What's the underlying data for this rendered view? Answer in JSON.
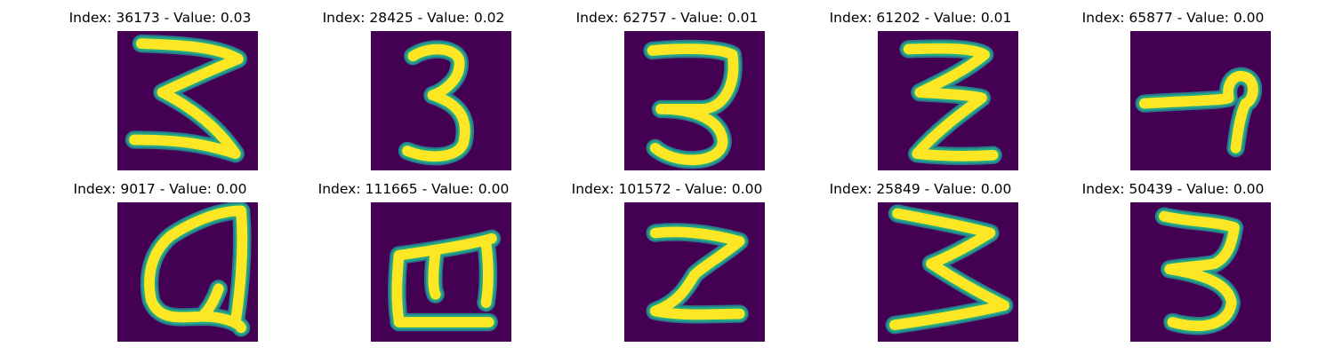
{
  "colors": {
    "background": "#440154",
    "glyph_core": "#fde725",
    "glyph_edge": "#22a884",
    "glyph_halo": "#2a788e"
  },
  "panels": [
    {
      "title": "Index: 36173 - Value: 0.03",
      "glyph": "character-3-zigzag"
    },
    {
      "title": "Index: 28425 - Value: 0.02",
      "glyph": "character-3"
    },
    {
      "title": "Index: 62757 - Value: 0.01",
      "glyph": "character-3-flat-top"
    },
    {
      "title": "Index: 61202 - Value: 0.01",
      "glyph": "character-z-double"
    },
    {
      "title": "Index: 65877 - Value: 0.00",
      "glyph": "character-hook"
    },
    {
      "title": "Index: 9017 - Value: 0.00",
      "glyph": "character-loop"
    },
    {
      "title": "Index: 111665 - Value: 0.00",
      "glyph": "character-m-comb"
    },
    {
      "title": "Index: 101572 - Value: 0.00",
      "glyph": "character-i-slanted"
    },
    {
      "title": "Index: 25849 - Value: 0.00",
      "glyph": "character-3-wide-zigzag"
    },
    {
      "title": "Index: 50439 - Value: 0.00",
      "glyph": "character-3-round"
    }
  ]
}
